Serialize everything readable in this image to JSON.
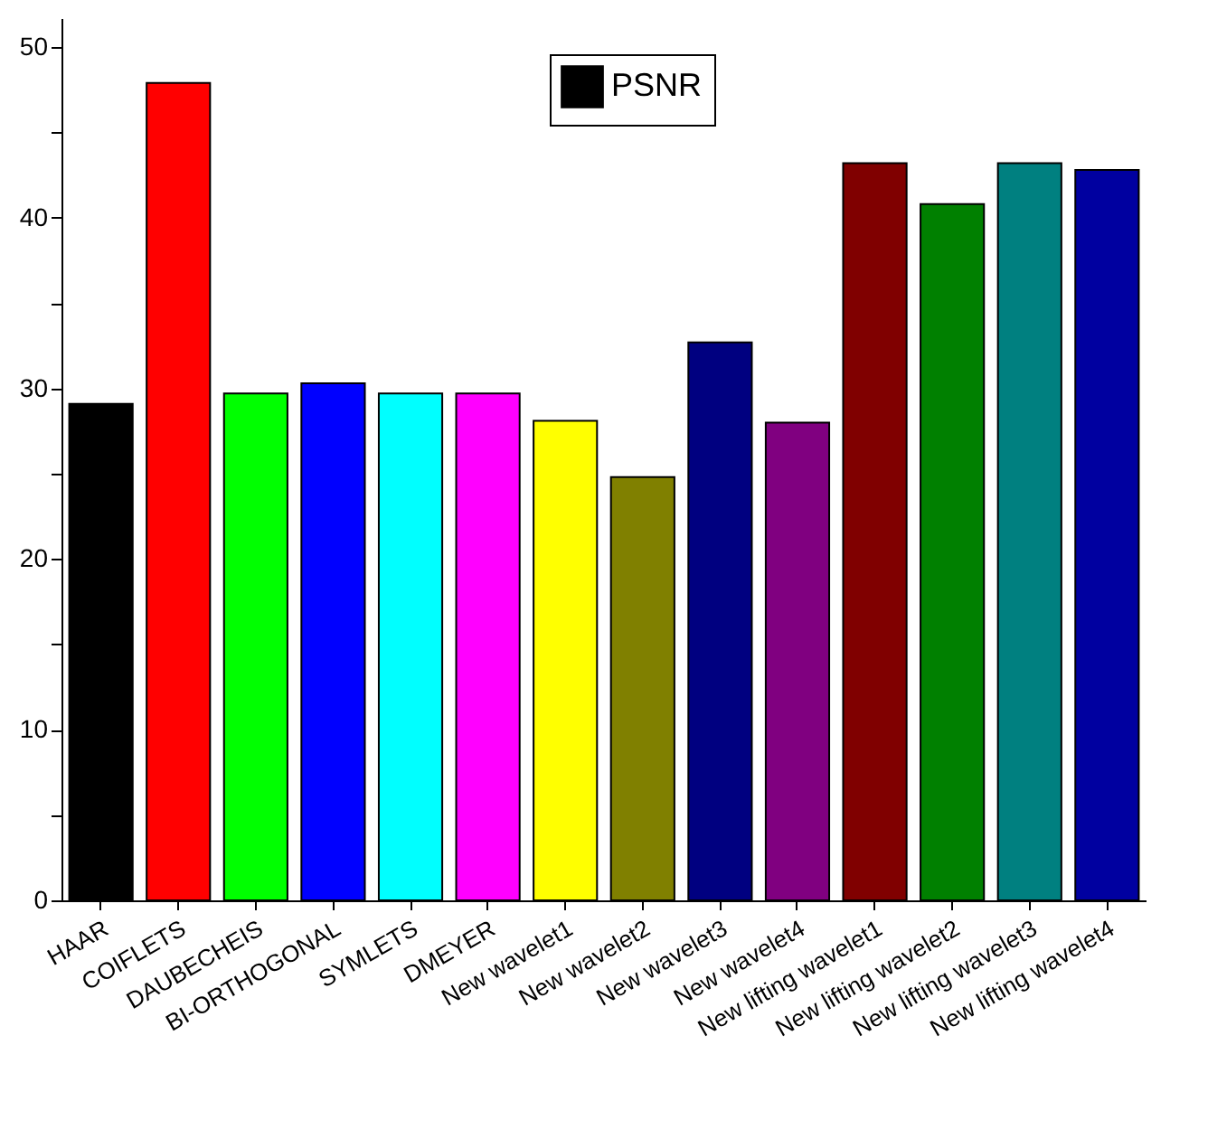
{
  "chart_data": {
    "type": "bar",
    "categories": [
      "HAAR",
      "COIFLETS",
      "DAUBECHEIS",
      "BI-ORTHOGONAL",
      "SYMLETS",
      "DMEYER",
      "New  wavelet1",
      "New  wavelet2",
      "New  wavelet3",
      "New  wavelet4",
      "New lifting wavelet1",
      "New lifting wavelet2",
      "New lifting wavelet3",
      "New lifting wavelet4"
    ],
    "series": [
      {
        "name": "PSNR",
        "color": "#000000",
        "values": [
          29.1,
          47.9,
          29.7,
          30.3,
          29.7,
          29.7,
          28.1,
          24.8,
          32.7,
          28.0,
          43.2,
          40.8,
          43.2,
          42.8
        ]
      }
    ],
    "colors": [
      "#000000",
      "#ff0000",
      "#00ff00",
      "#0000ff",
      "#00ffff",
      "#ff00ff",
      "#ffff00",
      "#808000",
      "#000080",
      "#800080",
      "#800000",
      "#008000",
      "#008080",
      "#0000a0"
    ],
    "ylim": [
      0,
      51.7
    ],
    "yticks": [
      0,
      {
        "value": 5,
        "label": null
      },
      10,
      {
        "value": 15,
        "label": null
      },
      20,
      {
        "value": 25,
        "label": null
      },
      30,
      {
        "value": 35,
        "label": null
      },
      40,
      {
        "value": 45,
        "label": null
      },
      50
    ],
    "grid": false,
    "legend": "top"
  }
}
